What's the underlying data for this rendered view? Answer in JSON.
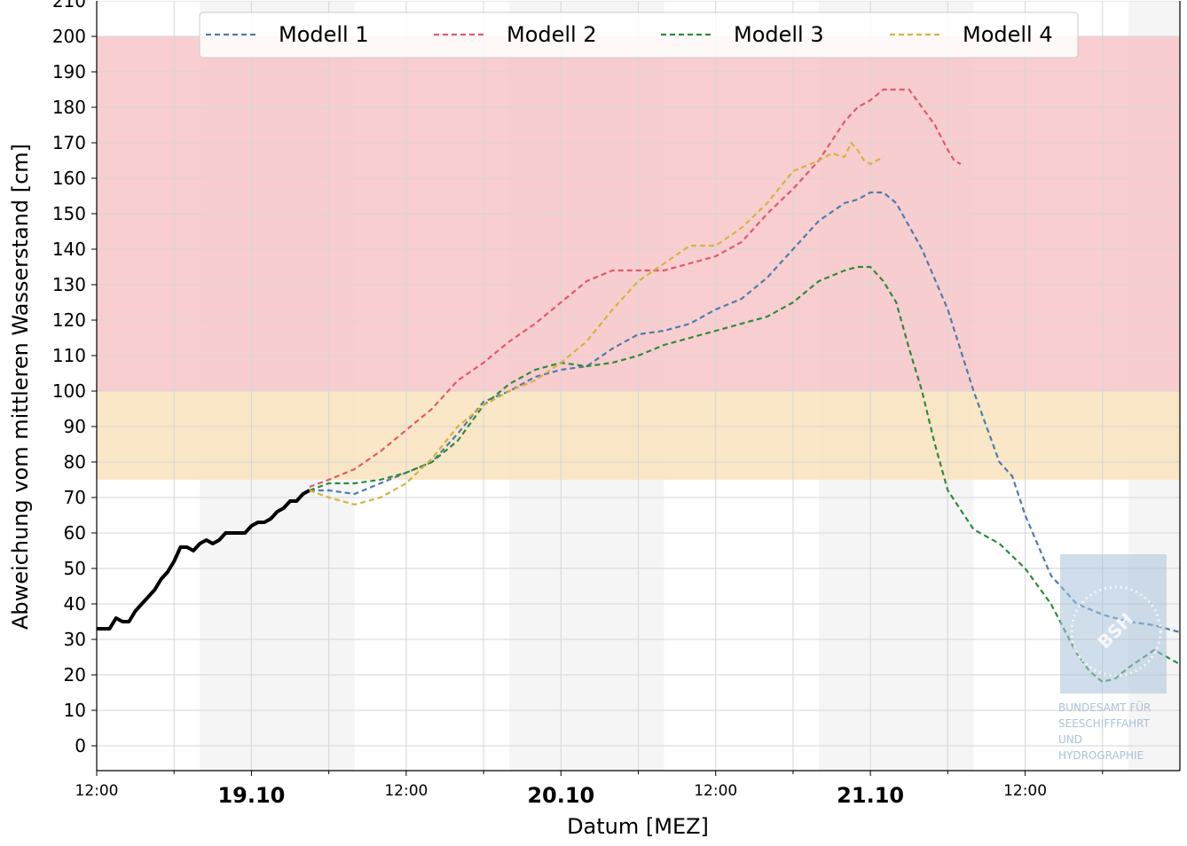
{
  "chart_data": {
    "type": "line",
    "xlabel": "Datum [MEZ]",
    "ylabel": "Abweichung vom mittleren Wasserstand [cm]",
    "x_unit": "hours since 18.10 12:00 (MEZ)",
    "xlim": [
      0,
      84
    ],
    "ylim": [
      -7,
      210
    ],
    "y_ticks": [
      0,
      10,
      20,
      30,
      40,
      50,
      60,
      70,
      80,
      90,
      100,
      110,
      120,
      130,
      140,
      150,
      160,
      170,
      180,
      190,
      200
    ],
    "y_tick_labels": [
      "0",
      "10",
      "20",
      "30",
      "40",
      "50",
      "60",
      "70",
      "80",
      "90",
      "100",
      "110",
      "120",
      "130",
      "140",
      "150",
      "160",
      "170",
      "180",
      "190",
      "200"
    ],
    "top_tick_label": "210",
    "x_ticks": [
      {
        "x": 0,
        "label": "12:00",
        "bold": false
      },
      {
        "x": 12,
        "label": "19.10",
        "bold": true
      },
      {
        "x": 24,
        "label": "12:00",
        "bold": false
      },
      {
        "x": 36,
        "label": "20.10",
        "bold": true
      },
      {
        "x": 48,
        "label": "12:00",
        "bold": false
      },
      {
        "x": 60,
        "label": "21.10",
        "bold": true
      },
      {
        "x": 72,
        "label": "12:00",
        "bold": false
      }
    ],
    "x_minor_ticks": [
      6,
      18,
      30,
      42,
      54,
      66,
      78
    ],
    "grid": true,
    "night_bands": [
      [
        8,
        20
      ],
      [
        32,
        44
      ],
      [
        56,
        68
      ],
      [
        80,
        84
      ]
    ],
    "warning_bands": [
      {
        "from": 75,
        "to": 100,
        "color": "#f9e3bd"
      },
      {
        "from": 100,
        "to": 200,
        "color": "#f8c6c8"
      }
    ],
    "legend": {
      "position": "top",
      "entries": [
        "Modell 1",
        "Modell 2",
        "Modell 3",
        "Modell 4"
      ]
    },
    "observed": {
      "color": "#000000",
      "x": [
        0,
        1,
        1.5,
        2,
        2.5,
        3,
        3.5,
        4,
        4.5,
        5,
        5.5,
        6,
        6.5,
        7,
        7.5,
        8,
        8.5,
        9,
        9.5,
        10,
        10.5,
        11,
        11.5,
        12,
        12.5,
        13,
        13.5,
        14,
        14.5,
        15,
        15.5,
        16,
        16.5
      ],
      "values": [
        33,
        33,
        36,
        35,
        35,
        38,
        40,
        42,
        44,
        47,
        49,
        52,
        56,
        56,
        55,
        57,
        58,
        57,
        58,
        60,
        60,
        60,
        60,
        62,
        63,
        63,
        64,
        66,
        67,
        69,
        69,
        71,
        72
      ]
    },
    "series": [
      {
        "name": "Modell 1",
        "color": "#4c7cb0",
        "x": [
          16.5,
          18,
          20,
          22,
          24,
          26,
          28,
          30,
          32,
          34,
          36,
          38,
          40,
          42,
          44,
          46,
          48,
          50,
          52,
          54,
          56,
          58,
          59,
          60,
          61,
          62,
          64,
          66,
          68,
          70,
          71,
          72,
          74,
          76,
          78,
          80,
          82,
          84
        ],
        "values": [
          72,
          72,
          71,
          74,
          77,
          80,
          88,
          97,
          100,
          104,
          106,
          107,
          112,
          116,
          117,
          119,
          123,
          126,
          132,
          140,
          148,
          153,
          154,
          156,
          156,
          153,
          140,
          123,
          100,
          80,
          76,
          65,
          48,
          40,
          37,
          35,
          34,
          32
        ]
      },
      {
        "name": "Modell 2",
        "color": "#e05a6a",
        "x": [
          16.5,
          18,
          20,
          22,
          24,
          26,
          28,
          30,
          32,
          34,
          36,
          38,
          40,
          42,
          44,
          46,
          48,
          50,
          52,
          54,
          56,
          58,
          59,
          60,
          61,
          62,
          63,
          64,
          65,
          66,
          66.5,
          67
        ],
        "values": [
          73,
          75,
          78,
          83,
          89,
          95,
          103,
          108,
          114,
          119,
          125,
          131,
          134,
          134,
          134,
          136,
          138,
          142,
          150,
          157,
          165,
          176,
          180,
          182,
          185,
          185,
          185,
          180,
          175,
          168,
          165,
          164
        ]
      },
      {
        "name": "Modell 3",
        "color": "#2e8b3c",
        "x": [
          16.5,
          18,
          20,
          22,
          24,
          26,
          28,
          30,
          32,
          34,
          36,
          38,
          40,
          42,
          44,
          46,
          48,
          50,
          52,
          54,
          56,
          58,
          59,
          60,
          61,
          62,
          63,
          64,
          65,
          66,
          68,
          70,
          72,
          74,
          76,
          77,
          78,
          79,
          80,
          82,
          84
        ],
        "values": [
          72,
          74,
          74,
          75,
          77,
          80,
          86,
          96,
          102,
          106,
          108,
          107,
          108,
          110,
          113,
          115,
          117,
          119,
          121,
          125,
          131,
          134,
          135,
          135,
          131,
          125,
          112,
          100,
          85,
          72,
          61,
          57,
          50,
          40,
          26,
          21,
          18,
          19,
          22,
          27,
          23
        ]
      },
      {
        "name": "Modell 4",
        "color": "#d4b43e",
        "x": [
          16.5,
          18,
          20,
          22,
          24,
          26,
          28,
          30,
          32,
          34,
          36,
          38,
          40,
          42,
          44,
          46,
          48,
          50,
          52,
          54,
          56,
          57,
          58,
          58.5,
          59,
          59.5,
          60,
          60.5,
          61
        ],
        "values": [
          72,
          70,
          68,
          70,
          74,
          81,
          90,
          96,
          100,
          103,
          108,
          114,
          123,
          131,
          136,
          141,
          141,
          146,
          153,
          162,
          165,
          167,
          166,
          170,
          168,
          165,
          164,
          165,
          166
        ]
      }
    ]
  },
  "watermark": {
    "lines": [
      "BUNDESAMT FÜR",
      "SEESCHIFFFAHRT",
      "UND",
      "HYDROGRAPHIE"
    ],
    "logo_text": "BSH",
    "color": "#a9c1d9"
  }
}
